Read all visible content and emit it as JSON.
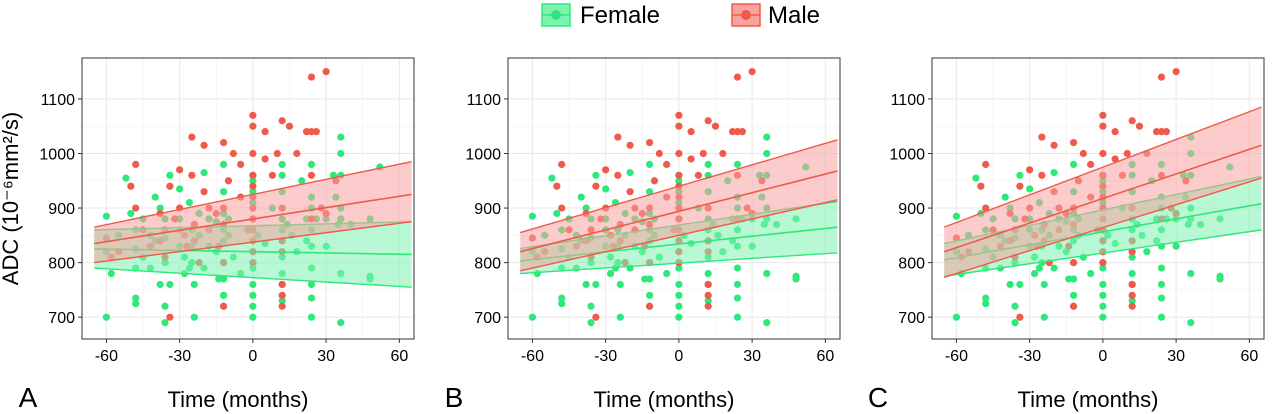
{
  "legend": {
    "position": "top-center",
    "items": [
      {
        "label": "Female",
        "color": "#2ee87a"
      },
      {
        "label": "Male",
        "color": "#f05a4a"
      }
    ]
  },
  "colors": {
    "female": "#2ee87a",
    "male": "#f05a4a",
    "female_band": "#7ff2b0",
    "male_band": "#f7a3a0"
  },
  "chart_data": [
    {
      "panel": "A",
      "type": "scatter",
      "xlabel": "Time (months)",
      "ylabel": "ADC (10⁻⁶mm²/s)",
      "xticks": [
        -60,
        -30,
        0,
        30,
        60
      ],
      "yticks": [
        700,
        800,
        900,
        1000,
        1100
      ],
      "xlim": [
        -70,
        66
      ],
      "ylim": [
        660,
        1175
      ],
      "grid": true,
      "series": [
        {
          "name": "Female",
          "fit": {
            "x": [
              -65,
              65
            ],
            "y": [
              825,
              815
            ],
            "lower": [
              790,
              755
            ],
            "upper": [
              860,
              875
            ]
          },
          "points": [
            [
              -60,
              885
            ],
            [
              -60,
              820
            ],
            [
              -60,
              700
            ],
            [
              -58,
              780
            ],
            [
              -55,
              850
            ],
            [
              -52,
              955
            ],
            [
              -50,
              890
            ],
            [
              -48,
              860
            ],
            [
              -48,
              825
            ],
            [
              -48,
              790
            ],
            [
              -48,
              735
            ],
            [
              -48,
              725
            ],
            [
              -45,
              880
            ],
            [
              -45,
              810
            ],
            [
              -42,
              850
            ],
            [
              -42,
              790
            ],
            [
              -40,
              920
            ],
            [
              -40,
              840
            ],
            [
              -38,
              900
            ],
            [
              -38,
              760
            ],
            [
              -36,
              880
            ],
            [
              -36,
              845
            ],
            [
              -36,
              800
            ],
            [
              -36,
              720
            ],
            [
              -36,
              690
            ],
            [
              -34,
              960
            ],
            [
              -34,
              760
            ],
            [
              -30,
              935
            ],
            [
              -30,
              880
            ],
            [
              -30,
              860
            ],
            [
              -30,
              830
            ],
            [
              -28,
              810
            ],
            [
              -28,
              780
            ],
            [
              -26,
              910
            ],
            [
              -26,
              790
            ],
            [
              -25,
              860
            ],
            [
              -25,
              830
            ],
            [
              -25,
              800
            ],
            [
              -24,
              700
            ],
            [
              -24,
              760
            ],
            [
              -22,
              890
            ],
            [
              -22,
              850
            ],
            [
              -20,
              965
            ],
            [
              -20,
              790
            ],
            [
              -18,
              880
            ],
            [
              -18,
              830
            ],
            [
              -15,
              875
            ],
            [
              -15,
              820
            ],
            [
              -14,
              770
            ],
            [
              -12,
              980
            ],
            [
              -12,
              930
            ],
            [
              -12,
              890
            ],
            [
              -12,
              860
            ],
            [
              -12,
              840
            ],
            [
              -12,
              800
            ],
            [
              -12,
              770
            ],
            [
              -12,
              740
            ],
            [
              -12,
              720
            ],
            [
              -10,
              880
            ],
            [
              -10,
              850
            ],
            [
              -8,
              810
            ],
            [
              -5,
              780
            ],
            [
              0,
              960
            ],
            [
              0,
              950
            ],
            [
              0,
              930
            ],
            [
              0,
              910
            ],
            [
              0,
              880
            ],
            [
              0,
              860
            ],
            [
              0,
              840
            ],
            [
              0,
              820
            ],
            [
              0,
              800
            ],
            [
              0,
              790
            ],
            [
              0,
              760
            ],
            [
              0,
              740
            ],
            [
              0,
              720
            ],
            [
              0,
              700
            ],
            [
              2,
              850
            ],
            [
              5,
              835
            ],
            [
              8,
              900
            ],
            [
              12,
              980
            ],
            [
              12,
              960
            ],
            [
              12,
              930
            ],
            [
              12,
              880
            ],
            [
              12,
              860
            ],
            [
              12,
              840
            ],
            [
              12,
              810
            ],
            [
              12,
              780
            ],
            [
              12,
              760
            ],
            [
              12,
              730
            ],
            [
              14,
              870
            ],
            [
              16,
              850
            ],
            [
              18,
              820
            ],
            [
              20,
              950
            ],
            [
              22,
              880
            ],
            [
              22,
              840
            ],
            [
              24,
              980
            ],
            [
              24,
              920
            ],
            [
              24,
              900
            ],
            [
              24,
              860
            ],
            [
              24,
              830
            ],
            [
              24,
              790
            ],
            [
              24,
              760
            ],
            [
              24,
              735
            ],
            [
              24,
              700
            ],
            [
              26,
              880
            ],
            [
              30,
              880
            ],
            [
              30,
              830
            ],
            [
              33,
              960
            ],
            [
              34,
              920
            ],
            [
              35,
              870
            ],
            [
              36,
              1030
            ],
            [
              36,
              1000
            ],
            [
              36,
              960
            ],
            [
              36,
              900
            ],
            [
              36,
              880
            ],
            [
              36,
              780
            ],
            [
              36,
              690
            ],
            [
              40,
              870
            ],
            [
              48,
              880
            ],
            [
              48,
              775
            ],
            [
              48,
              770
            ],
            [
              52,
              975
            ]
          ]
        },
        {
          "name": "Male",
          "fit": {
            "x": [
              -65,
              65
            ],
            "y": [
              835,
              925
            ],
            "lower": [
              800,
              875
            ],
            "upper": [
              865,
              985
            ]
          },
          "points": [
            [
              -60,
              845
            ],
            [
              -58,
              810
            ],
            [
              -55,
              820
            ],
            [
              -50,
              940
            ],
            [
              -48,
              980
            ],
            [
              -48,
              900
            ],
            [
              -45,
              860
            ],
            [
              -42,
              830
            ],
            [
              -38,
              890
            ],
            [
              -38,
              840
            ],
            [
              -36,
              860
            ],
            [
              -36,
              810
            ],
            [
              -34,
              940
            ],
            [
              -34,
              700
            ],
            [
              -32,
              880
            ],
            [
              -30,
              970
            ],
            [
              -30,
              900
            ],
            [
              -28,
              850
            ],
            [
              -27,
              830
            ],
            [
              -25,
              1030
            ],
            [
              -25,
              960
            ],
            [
              -24,
              870
            ],
            [
              -24,
              840
            ],
            [
              -22,
              800
            ],
            [
              -20,
              1015
            ],
            [
              -20,
              930
            ],
            [
              -18,
              900
            ],
            [
              -18,
              860
            ],
            [
              -15,
              890
            ],
            [
              -14,
              830
            ],
            [
              -12,
              1020
            ],
            [
              -12,
              900
            ],
            [
              -12,
              870
            ],
            [
              -12,
              800
            ],
            [
              -12,
              720
            ],
            [
              -10,
              950
            ],
            [
              -8,
              1000
            ],
            [
              -5,
              980
            ],
            [
              -5,
              920
            ],
            [
              -2,
              860
            ],
            [
              0,
              1070
            ],
            [
              0,
              1050
            ],
            [
              0,
              1000
            ],
            [
              0,
              960
            ],
            [
              0,
              940
            ],
            [
              0,
              920
            ],
            [
              0,
              900
            ],
            [
              0,
              880
            ],
            [
              0,
              860
            ],
            [
              0,
              840
            ],
            [
              0,
              820
            ],
            [
              0,
              800
            ],
            [
              5,
              1040
            ],
            [
              5,
              990
            ],
            [
              8,
              960
            ],
            [
              10,
              1000
            ],
            [
              12,
              1060
            ],
            [
              12,
              900
            ],
            [
              12,
              840
            ],
            [
              12,
              820
            ],
            [
              12,
              760
            ],
            [
              12,
              740
            ],
            [
              12,
              720
            ],
            [
              15,
              1050
            ],
            [
              18,
              1000
            ],
            [
              22,
              1040
            ],
            [
              24,
              1140
            ],
            [
              24,
              1040
            ],
            [
              24,
              960
            ],
            [
              24,
              880
            ],
            [
              26,
              1040
            ],
            [
              28,
              900
            ],
            [
              30,
              1150
            ],
            [
              30,
              890
            ],
            [
              34,
              950
            ]
          ]
        }
      ]
    },
    {
      "panel": "B",
      "type": "scatter",
      "xlabel": "Time (months)",
      "xticks": [
        -60,
        -30,
        0,
        30,
        60
      ],
      "yticks": [
        700,
        800,
        900,
        1000,
        1100
      ],
      "xlim": [
        -70,
        66
      ],
      "ylim": [
        660,
        1175
      ],
      "grid": true,
      "series": [
        {
          "name": "Female",
          "fit": {
            "x": [
              -65,
              65
            ],
            "y": [
              803,
              865
            ],
            "lower": [
              780,
              818
            ],
            "upper": [
              826,
              912
            ]
          }
        },
        {
          "name": "Male",
          "fit": {
            "x": [
              -65,
              65
            ],
            "y": [
              820,
              968
            ],
            "lower": [
              785,
              915
            ],
            "upper": [
              855,
              1025
            ]
          }
        }
      ]
    },
    {
      "panel": "C",
      "type": "scatter",
      "xlabel": "Time (months)",
      "xticks": [
        -60,
        -30,
        0,
        30,
        60
      ],
      "yticks": [
        700,
        800,
        900,
        1000,
        1100
      ],
      "xlim": [
        -70,
        66
      ],
      "ylim": [
        660,
        1175
      ],
      "grid": true,
      "series": [
        {
          "name": "Female",
          "fit": {
            "x": [
              -65,
              65
            ],
            "y": [
              805,
              908
            ],
            "lower": [
              775,
              860
            ],
            "upper": [
              835,
              958
            ]
          }
        },
        {
          "name": "Male",
          "fit": {
            "x": [
              -65,
              65
            ],
            "y": [
              820,
              1015
            ],
            "lower": [
              773,
              955
            ],
            "upper": [
              865,
              1085
            ]
          }
        }
      ]
    }
  ]
}
